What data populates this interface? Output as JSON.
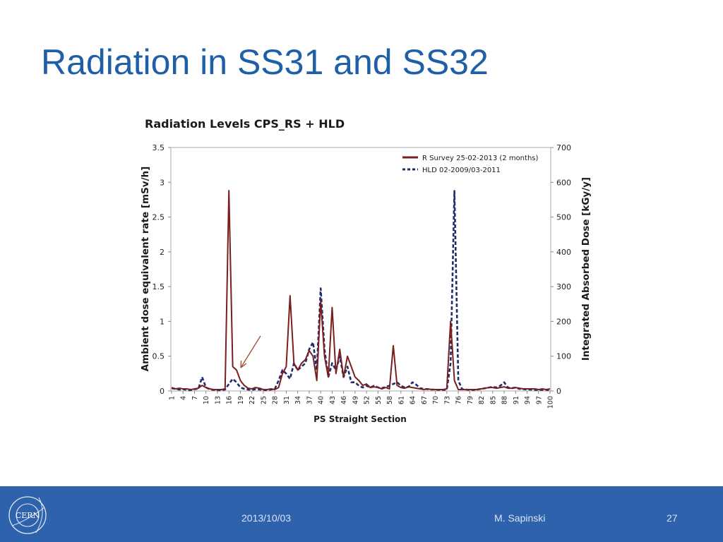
{
  "slide": {
    "title": "Radiation in SS31 and SS32"
  },
  "footer": {
    "org": "CERN",
    "date": "2013/10/03",
    "author": "M. Sapinski",
    "page": "27"
  },
  "colors": {
    "title": "#1f5fa8",
    "footer_bg": "#2e62ad",
    "survey": "#7b1e1e",
    "hld": "#1f2c6e"
  },
  "chart_data": {
    "type": "line",
    "title": "Radiation Levels CPS_RS + HLD",
    "xlabel": "PS Straight Section",
    "ylabel": "Ambient dose equivalent rate [mSv/h]",
    "y2label": "Integrated Absorbed Dose [kGy/y]",
    "ylim": [
      0,
      3.5
    ],
    "y2lim": [
      0,
      700
    ],
    "yticks": [
      "0",
      "0.5",
      "1",
      "1.5",
      "2",
      "2.5",
      "3",
      "3.5"
    ],
    "y2ticks": [
      "0",
      "100",
      "200",
      "300",
      "400",
      "500",
      "600",
      "700"
    ],
    "xticks": [
      "1",
      "4",
      "7",
      "10",
      "13",
      "16",
      "19",
      "22",
      "25",
      "28",
      "31",
      "34",
      "37",
      "40",
      "43",
      "46",
      "49",
      "52",
      "55",
      "58",
      "61",
      "64",
      "67",
      "70",
      "73",
      "76",
      "79",
      "82",
      "85",
      "88",
      "91",
      "94",
      "97",
      "100"
    ],
    "legend_position": "top-right",
    "x": [
      1,
      2,
      3,
      4,
      5,
      6,
      7,
      8,
      9,
      10,
      11,
      12,
      13,
      14,
      15,
      16,
      17,
      18,
      19,
      20,
      21,
      22,
      23,
      24,
      25,
      26,
      27,
      28,
      29,
      30,
      31,
      32,
      33,
      34,
      35,
      36,
      37,
      38,
      39,
      40,
      41,
      42,
      43,
      44,
      45,
      46,
      47,
      48,
      49,
      50,
      51,
      52,
      53,
      54,
      55,
      56,
      57,
      58,
      59,
      60,
      61,
      62,
      63,
      64,
      65,
      66,
      67,
      68,
      69,
      70,
      71,
      72,
      73,
      74,
      75,
      76,
      77,
      78,
      79,
      80,
      81,
      82,
      83,
      84,
      85,
      86,
      87,
      88,
      89,
      90,
      91,
      92,
      93,
      94,
      95,
      96,
      97,
      98,
      99,
      100
    ],
    "series": [
      {
        "name": "R Survey 25-02-2013 (2 months)",
        "axis": "left",
        "style": "solid",
        "values": [
          0.05,
          0.03,
          0.04,
          0.03,
          0.03,
          0.02,
          0.03,
          0.04,
          0.08,
          0.05,
          0.03,
          0.02,
          0.02,
          0.02,
          0.03,
          2.88,
          0.35,
          0.3,
          0.15,
          0.08,
          0.04,
          0.03,
          0.05,
          0.04,
          0.02,
          0.02,
          0.03,
          0.02,
          0.05,
          0.25,
          0.35,
          1.37,
          0.4,
          0.3,
          0.4,
          0.45,
          0.58,
          0.5,
          0.15,
          1.3,
          0.5,
          0.2,
          1.2,
          0.25,
          0.6,
          0.2,
          0.5,
          0.35,
          0.2,
          0.15,
          0.08,
          0.1,
          0.05,
          0.06,
          0.05,
          0.03,
          0.05,
          0.03,
          0.65,
          0.08,
          0.05,
          0.04,
          0.06,
          0.05,
          0.04,
          0.03,
          0.02,
          0.03,
          0.02,
          0.02,
          0.02,
          0.02,
          0.03,
          1.0,
          0.15,
          0.02,
          0.02,
          0.02,
          0.02,
          0.02,
          0.02,
          0.03,
          0.04,
          0.05,
          0.05,
          0.04,
          0.05,
          0.06,
          0.04,
          0.04,
          0.05,
          0.04,
          0.03,
          0.03,
          0.03,
          0.03,
          0.02,
          0.03,
          0.02,
          0.03
        ]
      },
      {
        "name": "HLD 02-2009/03-2011",
        "axis": "right",
        "style": "dashed",
        "values": [
          8,
          6,
          4,
          5,
          3,
          2,
          5,
          6,
          40,
          10,
          5,
          3,
          2,
          2,
          4,
          20,
          35,
          25,
          10,
          6,
          4,
          3,
          5,
          4,
          3,
          2,
          4,
          6,
          30,
          60,
          50,
          35,
          80,
          60,
          70,
          80,
          120,
          140,
          60,
          295,
          120,
          40,
          80,
          60,
          100,
          40,
          70,
          25,
          25,
          15,
          10,
          15,
          10,
          15,
          10,
          8,
          12,
          15,
          20,
          25,
          15,
          10,
          12,
          25,
          18,
          8,
          6,
          5,
          4,
          4,
          3,
          3,
          4,
          80,
          575,
          30,
          5,
          4,
          3,
          3,
          4,
          6,
          8,
          10,
          12,
          10,
          15,
          25,
          10,
          8,
          10,
          6,
          5,
          4,
          4,
          3,
          3,
          3,
          3,
          2
        ]
      }
    ]
  }
}
